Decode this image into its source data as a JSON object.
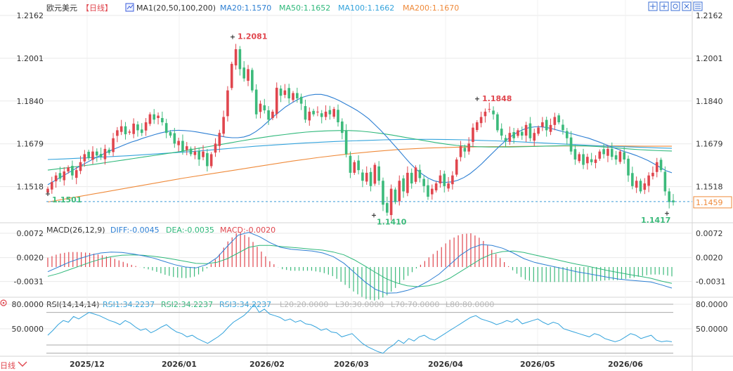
{
  "header": {
    "symbol": "欧元美元",
    "period": "【日线】",
    "ma_label": "MA1(20,50,100,200)",
    "ma_values": [
      {
        "text": "MA20:1.1570",
        "color": "#2d7fd3"
      },
      {
        "text": "MA50:1.1652",
        "color": "#2eb87a"
      },
      {
        "text": "MA100:1.1662",
        "color": "#33a3dc"
      },
      {
        "text": "MA200:1.1670",
        "color": "#ef8a3a"
      }
    ]
  },
  "toolbar": {
    "icons": [
      "move-icon",
      "pan-icon",
      "settings-icon",
      "zoom-icon",
      "grid-icon"
    ]
  },
  "colors": {
    "up": "#e0464e",
    "down": "#3cba7b",
    "ma20": "#2d7fd3",
    "ma50": "#2eb87a",
    "ma100": "#33a3dc",
    "ma200": "#ef8a3a",
    "grid": "#e9e9e9",
    "axis_text": "#333333",
    "dif": "#2d7fd3",
    "dea": "#2eb87a",
    "rsi": "#33a3dc",
    "price_line": "#3a9bd8"
  },
  "chart_data": [
    {
      "type": "candlestick",
      "title": "欧元美元 日线",
      "x_labels": [
        "2025/12",
        "2026/01",
        "2026/02",
        "2026/03",
        "2026/04",
        "2026/05",
        "2026/06"
      ],
      "y_ticks": [
        "1.2162",
        "1.2001",
        "1.1840",
        "1.1679",
        "1.1518"
      ],
      "ylim": [
        1.139,
        1.2162
      ],
      "last_price": "1.1459",
      "annotations": [
        {
          "text": "1.2081",
          "kind": "high",
          "color": "#e0464e"
        },
        {
          "text": "1.1848",
          "kind": "high",
          "color": "#e0464e"
        },
        {
          "text": "1.1501",
          "kind": "low",
          "color": "#3cba7b"
        },
        {
          "text": "1.1410",
          "kind": "low",
          "color": "#3cba7b"
        },
        {
          "text": "1.1417",
          "kind": "low",
          "color": "#3cba7b"
        }
      ],
      "closes": [
        1.151,
        1.1535,
        1.156,
        1.1548,
        1.1575,
        1.159,
        1.156,
        1.158,
        1.161,
        1.164,
        1.1625,
        1.165,
        1.1635,
        1.163,
        1.166,
        1.1645,
        1.17,
        1.173,
        1.1745,
        1.1715,
        1.1725,
        1.1755,
        1.173,
        1.172,
        1.176,
        1.179,
        1.177,
        1.1785,
        1.176,
        1.172,
        1.171,
        1.168,
        1.169,
        1.165,
        1.167,
        1.164,
        1.165,
        1.162,
        1.165,
        1.1595,
        1.164,
        1.168,
        1.172,
        1.178,
        1.188,
        1.198,
        1.2035,
        1.196,
        1.1925,
        1.196,
        1.188,
        1.179,
        1.183,
        1.1805,
        1.177,
        1.18,
        1.189,
        1.186,
        1.188,
        1.185,
        1.187,
        1.185,
        1.183,
        1.177,
        1.18,
        1.179,
        1.18,
        1.178,
        1.18,
        1.179,
        1.181,
        1.176,
        1.172,
        1.164,
        1.157,
        1.161,
        1.158,
        1.154,
        1.157,
        1.152,
        1.16,
        1.154,
        1.145,
        1.142,
        1.151,
        1.146,
        1.154,
        1.15,
        1.157,
        1.153,
        1.159,
        1.155,
        1.152,
        1.148,
        1.151,
        1.153,
        1.156,
        1.152,
        1.153,
        1.156,
        1.162,
        1.167,
        1.165,
        1.168,
        1.174,
        1.176,
        1.178,
        1.18,
        1.181,
        1.179,
        1.173,
        1.171,
        1.169,
        1.172,
        1.17,
        1.173,
        1.171,
        1.175,
        1.17,
        1.172,
        1.174,
        1.176,
        1.173,
        1.175,
        1.178,
        1.176,
        1.173,
        1.17,
        1.165,
        1.162,
        1.164,
        1.16,
        1.163,
        1.161,
        1.162,
        1.165,
        1.164,
        1.166,
        1.163,
        1.162,
        1.165,
        1.162,
        1.156,
        1.152,
        1.154,
        1.15,
        1.153,
        1.156,
        1.157,
        1.161,
        1.158,
        1.15,
        1.146,
        1.1459
      ],
      "series": [
        {
          "name": "MA20",
          "values": [
            1.1525,
            1.1538,
            1.1551,
            1.1564,
            1.1577,
            1.159,
            1.1602,
            1.1614,
            1.1626,
            1.1637,
            1.1648,
            1.1658,
            1.1667,
            1.1676,
            1.1685,
            1.1692,
            1.17,
            1.1707,
            1.1714,
            1.172,
            1.1725,
            1.1729,
            1.173,
            1.1729,
            1.1727,
            1.1724,
            1.172,
            1.1716,
            1.1712,
            1.1708,
            1.1704,
            1.1702,
            1.1702,
            1.1705,
            1.1712,
            1.1725,
            1.1742,
            1.1762,
            1.1782,
            1.18,
            1.1818,
            1.1832,
            1.1845,
            1.1855,
            1.1862,
            1.1865,
            1.1865,
            1.186,
            1.1852,
            1.1842,
            1.183,
            1.1818,
            1.1805,
            1.179,
            1.1773,
            1.1752,
            1.173,
            1.1706,
            1.1681,
            1.1656,
            1.163,
            1.1605,
            1.1583,
            1.1565,
            1.155,
            1.154,
            1.1535,
            1.1534,
            1.1536,
            1.1542,
            1.1552,
            1.1566,
            1.1584,
            1.1604,
            1.1626,
            1.1648,
            1.167,
            1.169,
            1.1708,
            1.1722,
            1.1733,
            1.174,
            1.1743,
            1.1743,
            1.174,
            1.1735,
            1.1729,
            1.1723,
            1.1718,
            1.1712,
            1.1706,
            1.17,
            1.1692,
            1.1684,
            1.1675,
            1.1666,
            1.1658,
            1.165,
            1.1643,
            1.1635,
            1.1626,
            1.1616,
            1.1604,
            1.1591,
            1.1578,
            1.157
          ]
        },
        {
          "name": "MA50",
          "values": [
            1.158,
            1.1585,
            1.159,
            1.1595,
            1.16,
            1.1606,
            1.1612,
            1.1618,
            1.1624,
            1.163,
            1.1636,
            1.1642,
            1.1648,
            1.1655,
            1.1662,
            1.1669,
            1.1676,
            1.1683,
            1.169,
            1.1697,
            1.1703,
            1.1709,
            1.1714,
            1.1719,
            1.1723,
            1.1726,
            1.1728,
            1.1729,
            1.1729,
            1.1727,
            1.1723,
            1.1718,
            1.1712,
            1.1705,
            1.1698,
            1.1691,
            1.1684,
            1.1678,
            1.1673,
            1.167,
            1.1668,
            1.1667,
            1.1667,
            1.1667,
            1.1668,
            1.1669,
            1.167,
            1.1671,
            1.1672,
            1.1672,
            1.1671,
            1.1669,
            1.1666,
            1.1663,
            1.166,
            1.1657,
            1.1655,
            1.1653,
            1.1652
          ]
        },
        {
          "name": "MA100",
          "values": [
            1.162,
            1.1622,
            1.1625,
            1.1628,
            1.1631,
            1.1634,
            1.1638,
            1.1642,
            1.1646,
            1.165,
            1.1655,
            1.166,
            1.1665,
            1.167,
            1.1674,
            1.1678,
            1.1682,
            1.1685,
            1.1688,
            1.169,
            1.1692,
            1.1694,
            1.1695,
            1.1696,
            1.1696,
            1.1695,
            1.1694,
            1.1692,
            1.169,
            1.1688,
            1.1685,
            1.1682,
            1.1679,
            1.1676,
            1.1673,
            1.167,
            1.1668,
            1.1666,
            1.1664,
            1.1662
          ]
        },
        {
          "name": "MA200",
          "values": [
            1.146,
            1.1478,
            1.1496,
            1.1514,
            1.1532,
            1.155,
            1.1566,
            1.1582,
            1.1598,
            1.1614,
            1.1628,
            1.164,
            1.165,
            1.1658,
            1.1663,
            1.1666,
            1.1668,
            1.1669,
            1.167,
            1.1671,
            1.1671,
            1.1671,
            1.167,
            1.167
          ]
        }
      ]
    },
    {
      "type": "macd",
      "title": "MACD(26,12,9)",
      "legend": [
        {
          "text": "DIFF:-0.0045",
          "color": "#2d7fd3"
        },
        {
          "text": "DEA:-0.0035",
          "color": "#2eb87a"
        },
        {
          "text": "MACD:-0.0020",
          "color": "#e0464e"
        }
      ],
      "y_ticks": [
        "0.0072",
        "0.0020",
        "-0.0031"
      ],
      "ylim": [
        -0.006,
        0.009
      ],
      "dif": [
        -0.001,
        0.0,
        0.001,
        0.0018,
        0.0025,
        0.003,
        0.0032,
        0.0031,
        0.0028,
        0.0024,
        0.0019,
        0.0012,
        0.0005,
        0.0,
        -0.0002,
        0.0005,
        0.002,
        0.0045,
        0.0068,
        0.0074,
        0.0065,
        0.0052,
        0.0042,
        0.0038,
        0.0036,
        0.0034,
        0.003,
        0.0022,
        0.0008,
        -0.0012,
        -0.0032,
        -0.0048,
        -0.0056,
        -0.0055,
        -0.005,
        -0.0042,
        -0.003,
        -0.0015,
        0.0005,
        0.0025,
        0.004,
        0.0048,
        0.0046,
        0.004,
        0.003,
        0.0018,
        0.001,
        0.0005,
        0.0,
        -0.0005,
        -0.001,
        -0.0014,
        -0.0018,
        -0.0022,
        -0.0026,
        -0.0028,
        -0.003,
        -0.0032,
        -0.0038,
        -0.0045
      ],
      "dea": [
        -0.002,
        -0.0014,
        -0.0006,
        0.0002,
        0.001,
        0.0017,
        0.0022,
        0.0025,
        0.0026,
        0.0025,
        0.0023,
        0.002,
        0.0016,
        0.0012,
        0.0008,
        0.0007,
        0.001,
        0.0018,
        0.003,
        0.0042,
        0.0046,
        0.0046,
        0.0044,
        0.0042,
        0.004,
        0.0038,
        0.0036,
        0.0032,
        0.0026,
        0.0015,
        0.0002,
        -0.0012,
        -0.0025,
        -0.0034,
        -0.004,
        -0.0042,
        -0.004,
        -0.0034,
        -0.0024,
        -0.001,
        0.0004,
        0.0018,
        0.0028,
        0.0033,
        0.0034,
        0.0031,
        0.0026,
        0.0021,
        0.0016,
        0.0011,
        0.0006,
        0.0002,
        -0.0003,
        -0.0008,
        -0.0012,
        -0.0016,
        -0.002,
        -0.0024,
        -0.003,
        -0.0035
      ]
    },
    {
      "type": "line",
      "title": "RSI(14,14,14)",
      "legend": [
        {
          "text": "RSI1:34.2237",
          "color": "#33a3dc"
        },
        {
          "text": "RSI2:34.2237",
          "color": "#2eb87a"
        },
        {
          "text": "RSI3:34.2237",
          "color": "#33a3dc"
        },
        {
          "text": "L20:20.0000",
          "color": "#bbbbbb"
        },
        {
          "text": "L30:30.0000",
          "color": "#bbbbbb"
        },
        {
          "text": "L70:70.0000",
          "color": "#bbbbbb"
        },
        {
          "text": "L80:80.0000",
          "color": "#bbbbbb"
        }
      ],
      "y_ticks": [
        "80.0000",
        "50.0000"
      ],
      "ylim": [
        18,
        86
      ],
      "rsi": [
        42,
        48,
        55,
        60,
        58,
        65,
        62,
        66,
        70,
        68,
        66,
        63,
        60,
        58,
        55,
        60,
        57,
        52,
        48,
        50,
        45,
        48,
        52,
        55,
        50,
        46,
        44,
        40,
        42,
        38,
        35,
        32,
        36,
        40,
        45,
        52,
        58,
        62,
        66,
        72,
        80,
        70,
        74,
        68,
        66,
        64,
        60,
        62,
        58,
        60,
        56,
        55,
        52,
        48,
        50,
        46,
        45,
        40,
        42,
        44,
        38,
        32,
        28,
        25,
        22,
        20,
        26,
        30,
        36,
        32,
        38,
        35,
        40,
        42,
        38,
        36,
        40,
        44,
        48,
        52,
        56,
        60,
        64,
        66,
        62,
        60,
        58,
        55,
        57,
        60,
        58,
        62,
        56,
        58,
        60,
        62,
        58,
        55,
        58,
        56,
        50,
        48,
        46,
        44,
        42,
        40,
        44,
        42,
        38,
        36,
        34,
        36,
        40,
        44,
        42,
        38,
        40,
        42,
        36,
        34,
        35,
        34
      ]
    }
  ]
}
